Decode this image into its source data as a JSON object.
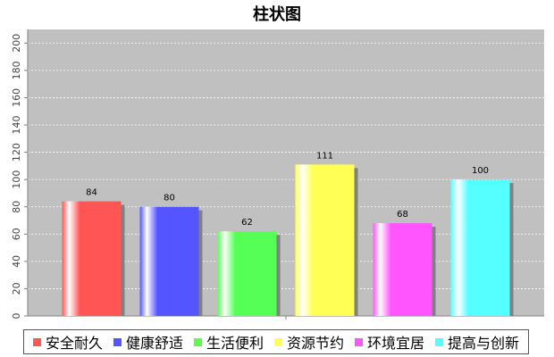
{
  "chart_data": {
    "type": "bar",
    "title": "柱状图",
    "categories": [
      "安全耐久",
      "健康舒适",
      "生活便利",
      "资源节约",
      "环境宜居",
      "提高与创新"
    ],
    "values": [
      84,
      80,
      62,
      111,
      68,
      100
    ],
    "colors": [
      "#ff5555",
      "#5555ff",
      "#55ff55",
      "#ffff55",
      "#ff55ff",
      "#55ffff"
    ],
    "ylim": [
      0,
      210
    ],
    "yticks": [
      0,
      20,
      40,
      60,
      80,
      100,
      120,
      140,
      160,
      180,
      200
    ],
    "grid": true,
    "legend_position": "bottom",
    "xlabel": "",
    "ylabel": ""
  }
}
